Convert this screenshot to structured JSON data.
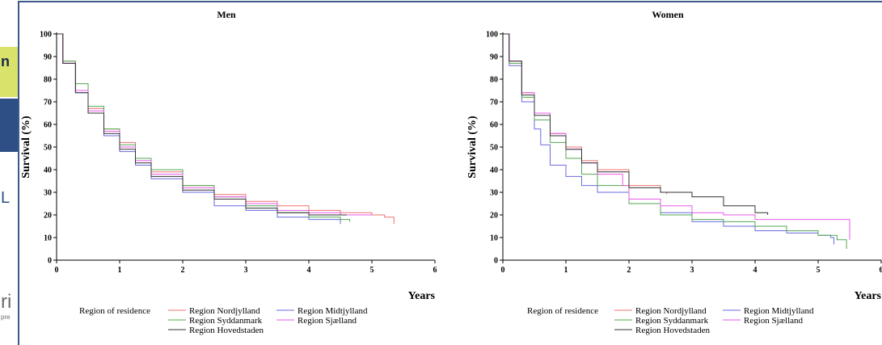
{
  "background_fragments": {
    "top_letter": "n",
    "middle_letter": "L",
    "bottom_letter": "ri",
    "small_text": "pre"
  },
  "chart_data": [
    {
      "type": "line",
      "title": "Men",
      "xlabel": "Years",
      "ylabel": "Survival (%)",
      "xlim": [
        0,
        6
      ],
      "ylim": [
        0,
        100
      ],
      "xticks": [
        0,
        1,
        2,
        3,
        4,
        5,
        6
      ],
      "yticks": [
        0,
        10,
        20,
        30,
        40,
        50,
        60,
        70,
        80,
        90,
        100
      ],
      "grid": false,
      "legend": {
        "title": "Region of residence",
        "placement": "bottom",
        "entries": [
          "Region Nordjylland",
          "Region Midtjylland",
          "Region Syddanmark",
          "Region Sjælland",
          "Region Hovedstaden"
        ]
      },
      "series": [
        {
          "name": "Region Nordjylland",
          "color": "#f07070",
          "x": [
            0,
            0.1,
            0.3,
            0.5,
            0.75,
            1,
            1.25,
            1.5,
            2,
            2.5,
            3,
            3.5,
            4,
            4.5,
            5,
            5.2,
            5.35
          ],
          "y": [
            100,
            88,
            75,
            67,
            58,
            52,
            45,
            39,
            33,
            29,
            26,
            24,
            22,
            21,
            20,
            19,
            16
          ]
        },
        {
          "name": "Region Midtjylland",
          "color": "#6a6ae0",
          "x": [
            0,
            0.1,
            0.3,
            0.5,
            0.75,
            1,
            1.25,
            1.5,
            2,
            2.5,
            3,
            3.5,
            4,
            4.5
          ],
          "y": [
            100,
            87,
            74,
            65,
            55,
            48,
            42,
            36,
            30,
            24,
            22,
            19,
            18,
            16
          ]
        },
        {
          "name": "Region Syddanmark",
          "color": "#52a852",
          "x": [
            0,
            0.1,
            0.3,
            0.5,
            0.75,
            1,
            1.25,
            1.5,
            2,
            2.5,
            3,
            3.5,
            4,
            4.5,
            4.65
          ],
          "y": [
            100,
            88,
            78,
            68,
            58,
            51,
            45,
            40,
            33,
            28,
            24,
            21,
            19,
            18,
            17
          ]
        },
        {
          "name": "Region Sjælland",
          "color": "#e85ae8",
          "x": [
            0,
            0.1,
            0.3,
            0.5,
            0.75,
            1,
            1.25,
            1.5,
            2,
            2.5,
            3,
            3.5,
            4,
            4.5,
            5
          ],
          "y": [
            100,
            87,
            75,
            66,
            57,
            50,
            44,
            38,
            32,
            28,
            25,
            22,
            21,
            20,
            20
          ]
        },
        {
          "name": "Region Hovedstaden",
          "color": "#333333",
          "x": [
            0,
            0.1,
            0.3,
            0.5,
            0.75,
            1,
            1.25,
            1.5,
            2,
            2.5,
            3,
            3.5,
            4,
            4.5,
            4.6
          ],
          "y": [
            100,
            87,
            74,
            65,
            56,
            49,
            43,
            37,
            31,
            27,
            23,
            21,
            20,
            20,
            20
          ]
        }
      ]
    },
    {
      "type": "line",
      "title": "Women",
      "xlabel": "Years",
      "ylabel": "Survival (%)",
      "xlim": [
        0,
        6
      ],
      "ylim": [
        0,
        100
      ],
      "xticks": [
        0,
        1,
        2,
        3,
        4,
        5,
        6
      ],
      "yticks": [
        0,
        10,
        20,
        30,
        40,
        50,
        60,
        70,
        80,
        90,
        100
      ],
      "grid": false,
      "legend": {
        "title": "Region of residence",
        "placement": "bottom",
        "entries": [
          "Region Nordjylland",
          "Region Midtjylland",
          "Region Syddanmark",
          "Region Sjælland",
          "Region Hovedstaden"
        ]
      },
      "series": [
        {
          "name": "Region Nordjylland",
          "color": "#f07070",
          "x": [
            0,
            0.1,
            0.3,
            0.5,
            0.75,
            1,
            1.25,
            1.5,
            2,
            2.5,
            2.6
          ],
          "y": [
            100,
            88,
            74,
            65,
            56,
            50,
            44,
            40,
            33,
            30,
            29
          ]
        },
        {
          "name": "Region Midtjylland",
          "color": "#6a6ae0",
          "x": [
            0,
            0.1,
            0.3,
            0.5,
            0.6,
            0.75,
            1,
            1.25,
            1.5,
            2,
            2.5,
            3,
            3.5,
            4,
            4.5,
            5,
            5.2,
            5.25
          ],
          "y": [
            100,
            86,
            70,
            58,
            51,
            42,
            37,
            33,
            30,
            25,
            21,
            17,
            15,
            13,
            12,
            11,
            10,
            7
          ]
        },
        {
          "name": "Region Syddanmark",
          "color": "#52a852",
          "x": [
            0,
            0.1,
            0.3,
            0.5,
            0.75,
            1,
            1.25,
            1.5,
            2,
            2.5,
            3,
            3.5,
            4,
            4.5,
            5,
            5.3,
            5.45
          ],
          "y": [
            100,
            87,
            72,
            62,
            52,
            45,
            38,
            33,
            25,
            20,
            18,
            17,
            15,
            13,
            11,
            9,
            5
          ]
        },
        {
          "name": "Region Sjælland",
          "color": "#e85ae8",
          "x": [
            0,
            0.1,
            0.3,
            0.5,
            0.75,
            1,
            1.25,
            1.5,
            1.9,
            2,
            2.5,
            3,
            3.5,
            4,
            4.5,
            5,
            5.4,
            5.5
          ],
          "y": [
            100,
            88,
            74,
            65,
            56,
            49,
            43,
            38,
            33,
            27,
            24,
            21,
            20,
            18,
            18,
            18,
            18,
            9
          ]
        },
        {
          "name": "Region Hovedstaden",
          "color": "#333333",
          "x": [
            0,
            0.1,
            0.3,
            0.5,
            0.75,
            1,
            1.25,
            1.5,
            2,
            2.5,
            3,
            3.5,
            4,
            4.2
          ],
          "y": [
            100,
            88,
            73,
            64,
            55,
            49,
            43,
            39,
            32,
            30,
            28,
            24,
            21,
            20
          ]
        }
      ]
    }
  ]
}
